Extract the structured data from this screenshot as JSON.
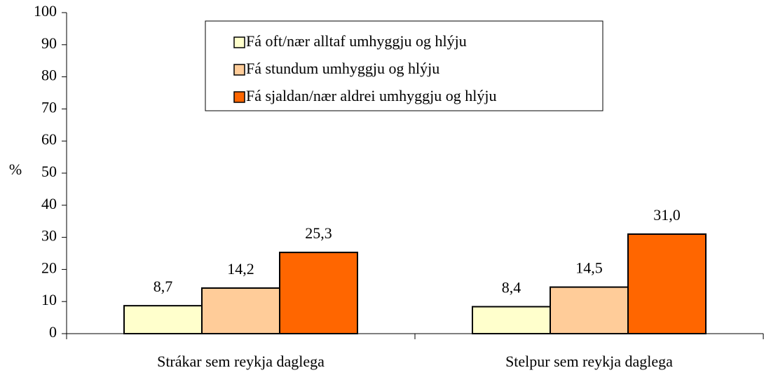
{
  "chart_data": {
    "type": "bar",
    "categories": [
      "Strákar sem reykja daglega",
      "Stelpur sem reykja daglega"
    ],
    "series": [
      {
        "name": "Fá oft/nær alltaf umhyggju og hlýju",
        "color": "#FFFFCC",
        "values": [
          8.7,
          8.4
        ],
        "value_labels": [
          "8,7",
          "8,4"
        ]
      },
      {
        "name": "Fá stundum umhyggju og hlýju",
        "color": "#FFCC99",
        "values": [
          14.2,
          14.5
        ],
        "value_labels": [
          "14,2",
          "14,5"
        ]
      },
      {
        "name": "Fá sjaldan/nær aldrei umhyggju og hlýju",
        "color": "#FF6600",
        "values": [
          25.3,
          31.0
        ],
        "value_labels": [
          "25,3",
          "31,0"
        ]
      }
    ],
    "y_label": "%",
    "ylim": [
      0,
      100
    ],
    "yticks": [
      0,
      10,
      20,
      30,
      40,
      50,
      60,
      70,
      80,
      90,
      100
    ],
    "grid": false,
    "legend": "top"
  }
}
